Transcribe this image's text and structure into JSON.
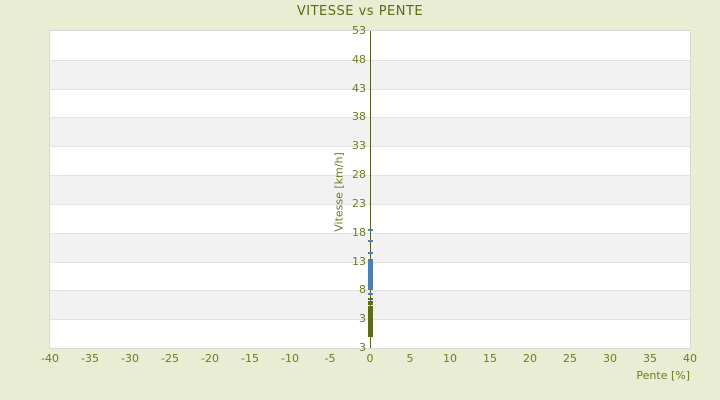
{
  "page": {
    "title": "VITESSE vs PENTE"
  },
  "chart_data": {
    "type": "scatter",
    "title": "VITESSE vs PENTE",
    "xlabel": "Pente [%]",
    "ylabel": "Vitesse [km/h]",
    "xlim": [
      -40,
      40
    ],
    "ylim": [
      -2,
      53
    ],
    "x_ticks": [
      -40,
      -35,
      -30,
      -25,
      -20,
      -15,
      -10,
      -5,
      0,
      5,
      10,
      15,
      20,
      25,
      30,
      35,
      40
    ],
    "y_ticks": [
      53,
      48,
      43,
      38,
      33,
      28,
      23,
      18,
      13,
      8,
      3
    ],
    "y_axis_end_label": "3",
    "grid": "alternating horizontal bands every 5 units",
    "legend_position": "none",
    "series": [
      {
        "name": "vitesse-points-bleus",
        "color": "#4d7fb2",
        "marker": "horizontal-dash",
        "x": 0,
        "y_singles": [
          18.5,
          16.6,
          14.4,
          7.4
        ],
        "y_dense": {
          "from": 8.2,
          "to": 13.2,
          "step": 0.1
        }
      },
      {
        "name": "vitesse-points-olive",
        "color": "#5d6a16",
        "marker": "horizontal-dash",
        "x": 0,
        "y_singles": [
          6.5,
          6.0,
          5.6,
          5.2,
          4.8,
          4.4,
          4.0,
          3.7,
          3.4,
          3.1,
          2.8,
          2.5,
          2.2,
          1.9,
          1.6,
          1.3,
          1.0
        ],
        "y_dense": {
          "from": 0.0,
          "to": 0.8,
          "step": 0.05
        }
      }
    ]
  },
  "colors": {
    "background": "#e9edd3",
    "band_light": "#ffffff",
    "band_dark": "#f2f2f2",
    "grid_line": "#e2e2e2",
    "plot_border": "#d9d9d9",
    "axis_line": "#55601a",
    "tick_text": "#6f7b1f",
    "title_text": "#5d6a12",
    "series_blue": "#4d7fb2",
    "series_olive": "#5d6a16"
  }
}
